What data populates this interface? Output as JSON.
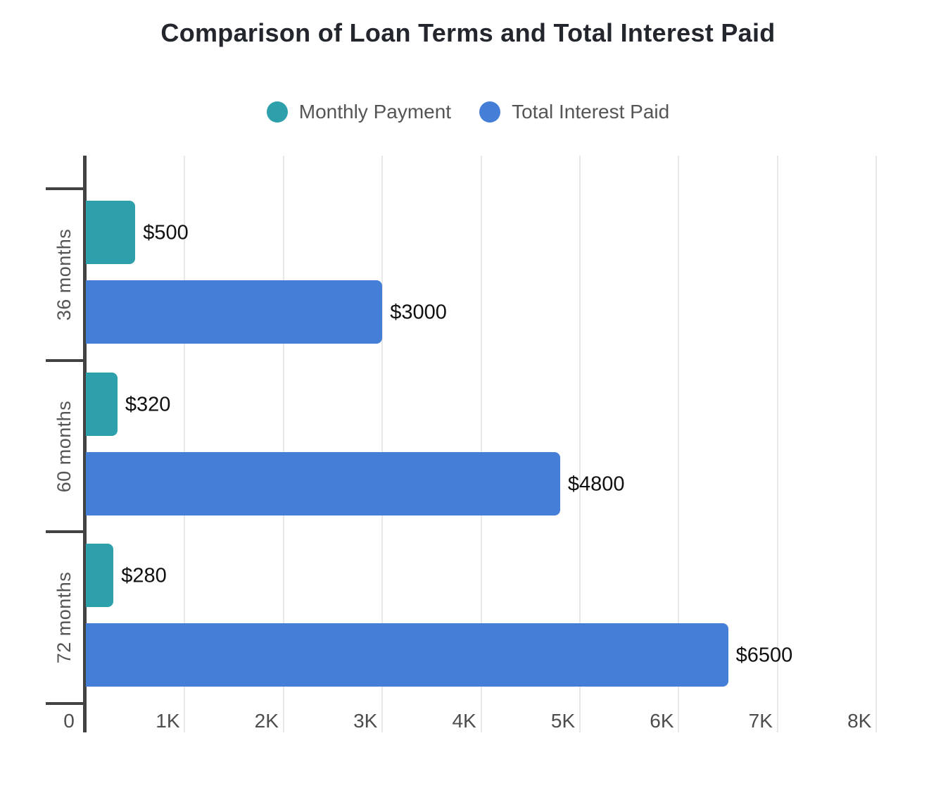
{
  "chart_data": {
    "type": "bar",
    "orientation": "horizontal",
    "title": "Comparison of Loan Terms and Total Interest Paid",
    "categories": [
      "36 months",
      "60 months",
      "72 months"
    ],
    "series": [
      {
        "name": "Monthly Payment",
        "color": "#2EA0AB",
        "values": [
          500,
          320,
          280
        ],
        "data_labels": [
          "$500",
          "$320",
          "$280"
        ]
      },
      {
        "name": "Total Interest Paid",
        "color": "#457ED7",
        "values": [
          3000,
          4800,
          6500
        ],
        "data_labels": [
          "$3000",
          "$4800",
          "$6500"
        ]
      }
    ],
    "x_axis": {
      "min": 0,
      "max": 8000,
      "tick_step": 1000,
      "tick_labels": [
        "0",
        "1K",
        "2K",
        "3K",
        "4K",
        "5K",
        "6K",
        "7K",
        "8K"
      ]
    },
    "grid": true,
    "legend_position": "top",
    "background": "#ffffff",
    "axis_color": "#424242",
    "grid_color": "#e8e8e8",
    "text_colors": {
      "title": "#23272d",
      "legend": "#555555",
      "category": "#555555",
      "tick": "#4d4d4d",
      "value_label": "#101010"
    }
  }
}
